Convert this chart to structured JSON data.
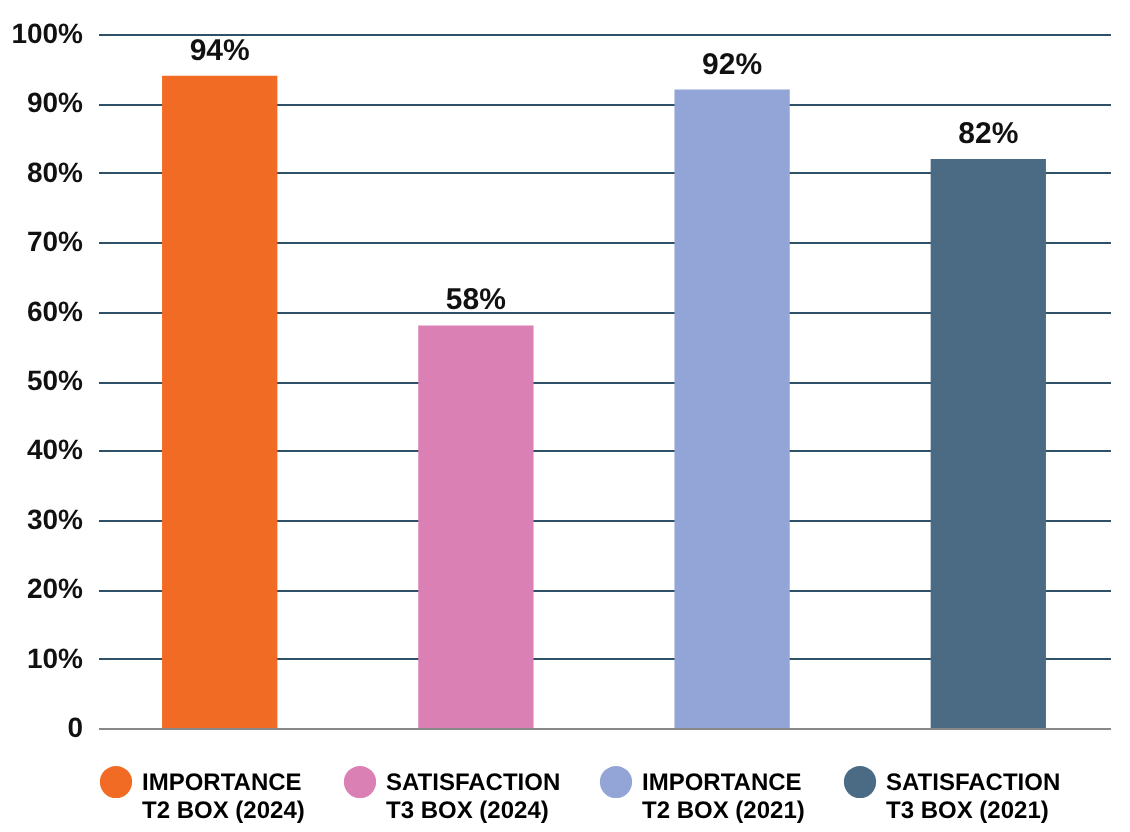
{
  "chart_data": {
    "type": "bar",
    "categories": [
      null,
      null,
      null,
      null
    ],
    "series": [
      {
        "name": "IMPORTANCE\nT2 BOX (2024)",
        "color": "#f26b25",
        "values": [
          94,
          null,
          null,
          null
        ],
        "value_labels": [
          "94%",
          null,
          null,
          null
        ]
      },
      {
        "name": "SATISFACTION\nT3 BOX (2024)",
        "color": "#db80b4",
        "values": [
          null,
          58,
          null,
          null
        ],
        "value_labels": [
          null,
          "58%",
          null,
          null
        ]
      },
      {
        "name": "IMPORTANCE\nT2 BOX (2021)",
        "color": "#93a5d6",
        "values": [
          null,
          null,
          92,
          null
        ],
        "value_labels": [
          null,
          null,
          "92%",
          null
        ]
      },
      {
        "name": "SATISFACTION\nT3 BOX (2021)",
        "color": "#4b6b85",
        "values": [
          null,
          null,
          null,
          82
        ],
        "value_labels": [
          null,
          null,
          null,
          "82%"
        ]
      }
    ],
    "ylim": [
      0,
      100
    ],
    "yticks": [
      0,
      {
        "value": 10,
        "label": "10%"
      },
      {
        "value": 20,
        "label": "20%"
      },
      {
        "value": 30,
        "label": "30%"
      },
      {
        "value": 40,
        "label": "40%"
      },
      {
        "value": 50,
        "label": "50%"
      },
      {
        "value": 60,
        "label": "60%"
      },
      {
        "value": 70,
        "label": "70%"
      },
      {
        "value": 80,
        "label": "80%"
      },
      {
        "value": 90,
        "label": "90%"
      },
      {
        "value": 100,
        "label": "100%"
      }
    ],
    "grid": "y",
    "legend": "bottom",
    "tick_labels": "y"
  }
}
